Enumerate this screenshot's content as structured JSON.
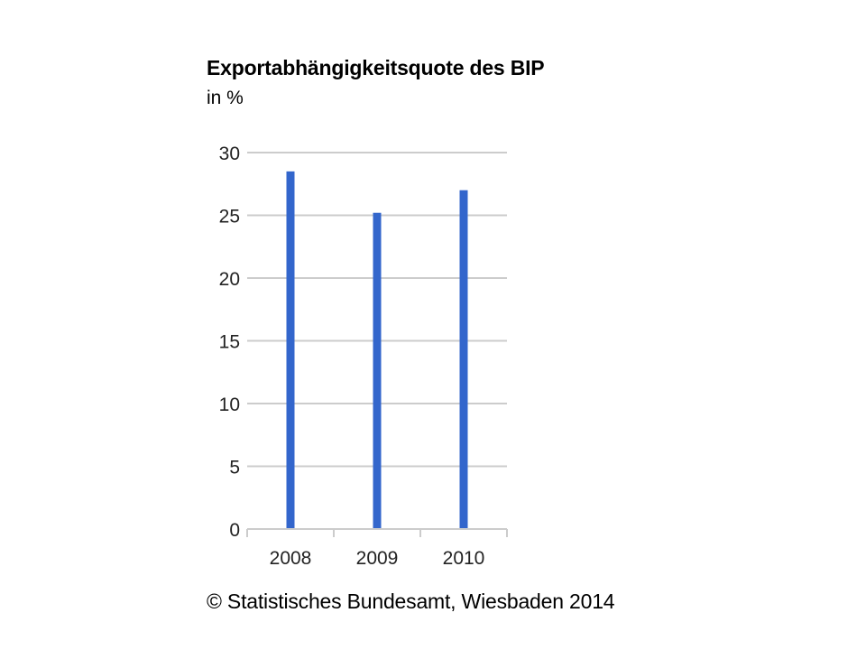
{
  "chart_data": {
    "type": "bar",
    "title": "Exportabhängigkeitsquote des BIP",
    "subtitle": "in %",
    "categories": [
      "2008",
      "2009",
      "2010"
    ],
    "values": [
      28.5,
      25.2,
      27.0
    ],
    "ylim": [
      0,
      30
    ],
    "yticks": [
      "0",
      "5",
      "10",
      "15",
      "20",
      "25",
      "30"
    ],
    "grid": true,
    "legend": "none",
    "bar_color": "#3366cc",
    "grid_color": "#cccccc",
    "source": "© Statistisches Bundesamt, Wiesbaden 2014"
  }
}
